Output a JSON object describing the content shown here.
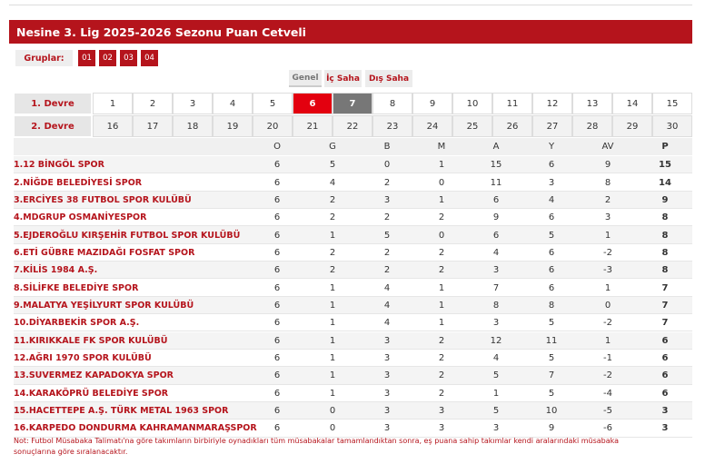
{
  "header": {
    "title": "Nesine 3. Lig 2025-2026 Sezonu Puan Cetveli"
  },
  "groups": {
    "label": "Gruplar:",
    "items": [
      "01",
      "02",
      "03",
      "04"
    ]
  },
  "tabs": [
    "Genel",
    "İç Saha",
    "Dış Saha"
  ],
  "weeks": {
    "first_half": {
      "label": "1. Devre",
      "items": [
        1,
        2,
        3,
        4,
        5,
        6,
        7,
        8,
        9,
        10,
        11,
        12,
        13,
        14,
        15
      ]
    },
    "second_half": {
      "label": "2. Devre",
      "items": [
        16,
        17,
        18,
        19,
        20,
        21,
        22,
        23,
        24,
        25,
        26,
        27,
        28,
        29,
        30
      ]
    }
  },
  "table": {
    "columns": [
      "O",
      "G",
      "B",
      "M",
      "A",
      "Y",
      "AV",
      "P"
    ],
    "rows": [
      [
        "1.12 BİNGÖL SPOR",
        6,
        5,
        0,
        1,
        15,
        6,
        9,
        15
      ],
      [
        "2.NİĞDE BELEDİYESİ SPOR",
        6,
        4,
        2,
        0,
        11,
        3,
        8,
        14
      ],
      [
        "3.ERCİYES 38 FUTBOL SPOR KULÜBÜ",
        6,
        2,
        3,
        1,
        6,
        4,
        2,
        9
      ],
      [
        "4.MDGRUP OSMANİYESPOR",
        6,
        2,
        2,
        2,
        9,
        6,
        3,
        8
      ],
      [
        "5.EJDEROĞLU KIRŞEHİR FUTBOL SPOR KULÜBÜ",
        6,
        1,
        5,
        0,
        6,
        5,
        1,
        8
      ],
      [
        "6.ETİ GÜBRE MAZIDAĞI FOSFAT SPOR",
        6,
        2,
        2,
        2,
        4,
        6,
        -2,
        8
      ],
      [
        "7.KİLİS 1984 A.Ş.",
        6,
        2,
        2,
        2,
        3,
        6,
        -3,
        8
      ],
      [
        "8.SİLİFKE BELEDİYE SPOR",
        6,
        1,
        4,
        1,
        7,
        6,
        1,
        7
      ],
      [
        "9.MALATYA YEŞİLYURT SPOR KULÜBÜ",
        6,
        1,
        4,
        1,
        8,
        8,
        0,
        7
      ],
      [
        "10.DİYARBEKİR SPOR A.Ş.",
        6,
        1,
        4,
        1,
        3,
        5,
        -2,
        7
      ],
      [
        "11.KIRIKKALE FK SPOR KULÜBÜ",
        6,
        1,
        3,
        2,
        12,
        11,
        1,
        6
      ],
      [
        "12.AĞRI 1970 SPOR KULÜBÜ",
        6,
        1,
        3,
        2,
        4,
        5,
        -1,
        6
      ],
      [
        "13.SUVERMEZ KAPADOKYA SPOR",
        6,
        1,
        3,
        2,
        5,
        7,
        -2,
        6
      ],
      [
        "14.KARAKÖPRÜ BELEDİYE SPOR",
        6,
        1,
        3,
        2,
        1,
        5,
        -4,
        6
      ],
      [
        "15.HACETTEPE A.Ş. TÜRK METAL 1963 SPOR",
        6,
        0,
        3,
        3,
        5,
        10,
        -5,
        3
      ],
      [
        "16.KARPEDO DONDURMA KAHRAMANMARAŞSPOR",
        6,
        0,
        3,
        3,
        3,
        9,
        -6,
        3
      ]
    ]
  },
  "note": "Not: Futbol Müsabaka Talimatı'na göre takımların birbiriyle oynadıkları tüm müsabakalar tamamlandıktan sonra, eş puana sahip takımlar kendi aralarındaki müsabaka sonuçlarına göre sıralanacaktır."
}
